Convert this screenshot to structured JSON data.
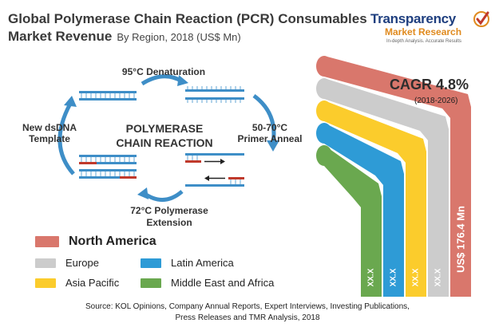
{
  "header": {
    "title_line1": "Global Polymerase Chain Reaction (PCR) Consumables",
    "title_line2": "Market Revenue",
    "subtitle": "By Region, 2018 (US$ Mn)"
  },
  "logo": {
    "name": "Transparency",
    "name2": "Market Research",
    "tagline": "In-depth Analysis. Accurate Results"
  },
  "pcr_diagram": {
    "center_line1": "POLYMERASE",
    "center_line2": "CHAIN REACTION",
    "step_top": "95°C Denaturation",
    "step_right_line1": "50-70°C",
    "step_right_line2": "Primer Anneal",
    "step_bottom_line1": "72°C Polymerase",
    "step_bottom_line2": "Extension",
    "step_left_line1": "New dsDNA",
    "step_left_line2": "Template"
  },
  "legend": [
    {
      "label": "North America",
      "color": "#d9776c",
      "emphasis": true
    },
    {
      "label": "Europe",
      "color": "#cccccc"
    },
    {
      "label": "Latin America",
      "color": "#2e9bd6"
    },
    {
      "label": "Asia Pacific",
      "color": "#fbcc2c"
    },
    {
      "label": "Middle East and Africa",
      "color": "#6aa84f"
    }
  ],
  "cagr": {
    "label": "CAGR 4.8%",
    "period": "(2018-2026)"
  },
  "chart_data": {
    "type": "bar",
    "title": "Global Polymerase Chain Reaction (PCR) Consumables Market Revenue",
    "subtitle": "By Region, 2018 (US$ Mn)",
    "categories": [
      "Middle East and Africa",
      "Latin America",
      "Asia Pacific",
      "Europe",
      "North America"
    ],
    "values": [
      null,
      null,
      null,
      null,
      176.4
    ],
    "value_labels": [
      "XX.X",
      "XX.X",
      "XX.X",
      "XX.X",
      "176.4"
    ],
    "unit_prefix": "US$",
    "unit_suffix": "Mn",
    "colors": [
      "#6aa84f",
      "#2e9bd6",
      "#fbcc2c",
      "#cccccc",
      "#d9776c"
    ],
    "legend_position": "bottom-left",
    "grid": false
  },
  "source": {
    "line1": "Source: KOL Opinions, Company Annual Reports, Expert Interviews, Investing Publications,",
    "line2": "Press Releases and TMR Analysis, 2018"
  }
}
